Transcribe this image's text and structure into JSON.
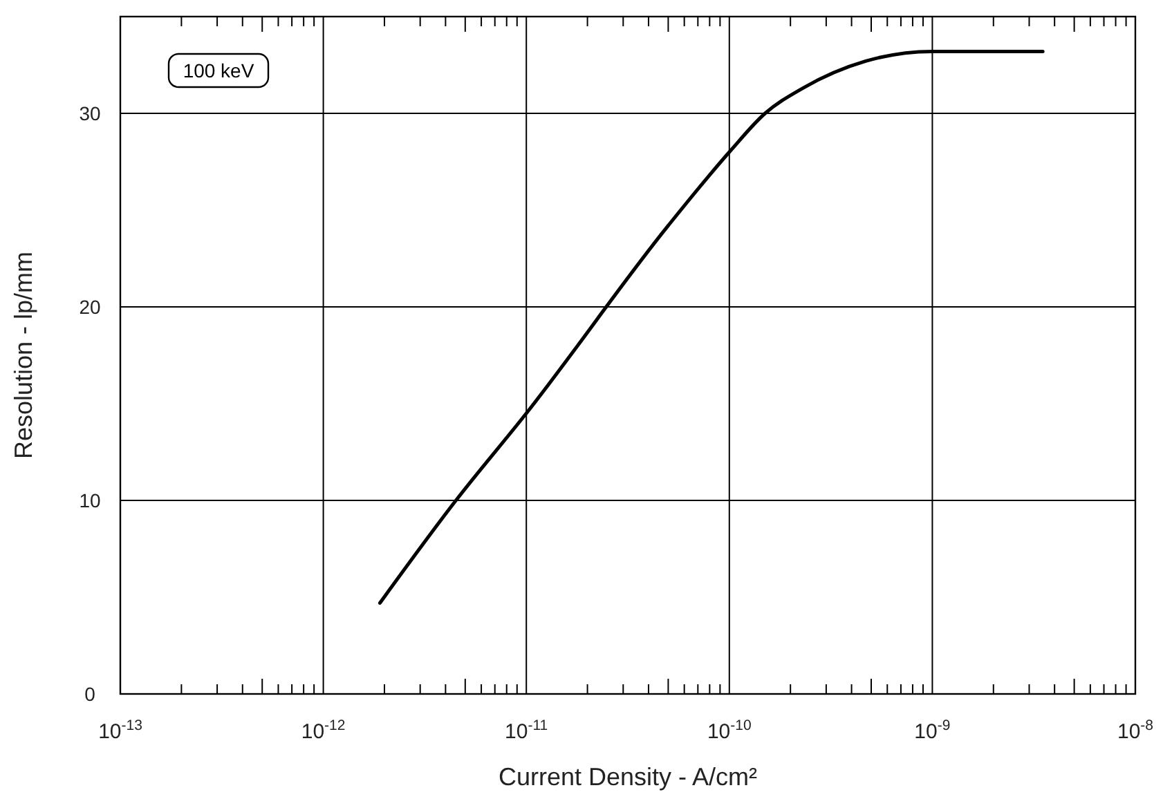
{
  "chart_data": {
    "type": "line",
    "xlabel": "Current Density - A/cm²",
    "ylabel": "Resolution - lp/mm",
    "annotations": [
      "100 keV"
    ],
    "log": "x",
    "grid": true,
    "marker": "none",
    "line_style": "solid",
    "xlim": [
      1e-13,
      1e-08
    ],
    "ylim": [
      0,
      35
    ],
    "xticks": [
      {
        "value": 1e-13,
        "label": "10$^{-13}$"
      },
      {
        "value": 1e-12,
        "label": "10$^{-12}$"
      },
      {
        "value": 1e-11,
        "label": "10$^{-11}$"
      },
      {
        "value": 1e-10,
        "label": "10$^{-10}$"
      },
      {
        "value": 1e-09,
        "label": "10$^{-9}$"
      },
      {
        "value": 1e-08,
        "label": "10$^{-8}$"
      }
    ],
    "yticks": [
      0,
      10,
      20,
      30
    ],
    "series": [
      {
        "color": "#000000",
        "x": [
          1.9e-12,
          4.5e-12,
          1e-11,
          5e-11,
          1e-10,
          1.5e-10,
          2.3e-10,
          4.7e-10,
          1e-09,
          3.5e-09
        ],
        "values": [
          4.7,
          10,
          14.5,
          24.2,
          28.0,
          30.0,
          31.3,
          32.7,
          33.2,
          33.2
        ]
      }
    ]
  }
}
